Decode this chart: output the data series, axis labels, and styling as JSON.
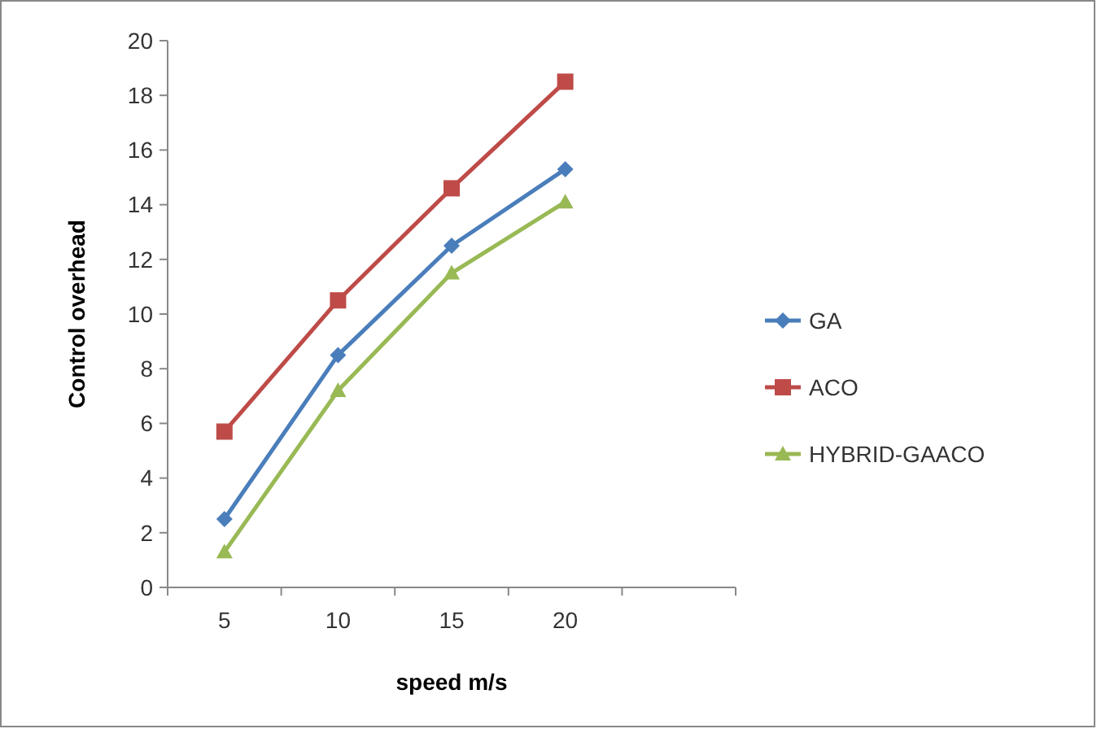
{
  "chart_data": {
    "type": "line",
    "xlabel": "speed m/s",
    "ylabel": "Control overhead",
    "categories": [
      "5",
      "10",
      "15",
      "20",
      null
    ],
    "ylim": [
      0,
      20
    ],
    "yticks": [
      0,
      2,
      4,
      6,
      8,
      10,
      12,
      14,
      16,
      18,
      20
    ],
    "grid": false,
    "legend": "right",
    "series": [
      {
        "name": "GA",
        "color": "#4a7ebb",
        "marker": "diamond",
        "values": [
          2.5,
          8.5,
          12.5,
          15.3,
          null
        ]
      },
      {
        "name": "ACO",
        "color": "#be4b48",
        "marker": "square",
        "values": [
          5.7,
          10.5,
          14.6,
          18.5,
          null
        ]
      },
      {
        "name": "HYBRID-GAACO",
        "color": "#98b954",
        "marker": "triangle",
        "values": [
          1.3,
          7.2,
          11.5,
          14.1,
          null
        ]
      }
    ]
  }
}
